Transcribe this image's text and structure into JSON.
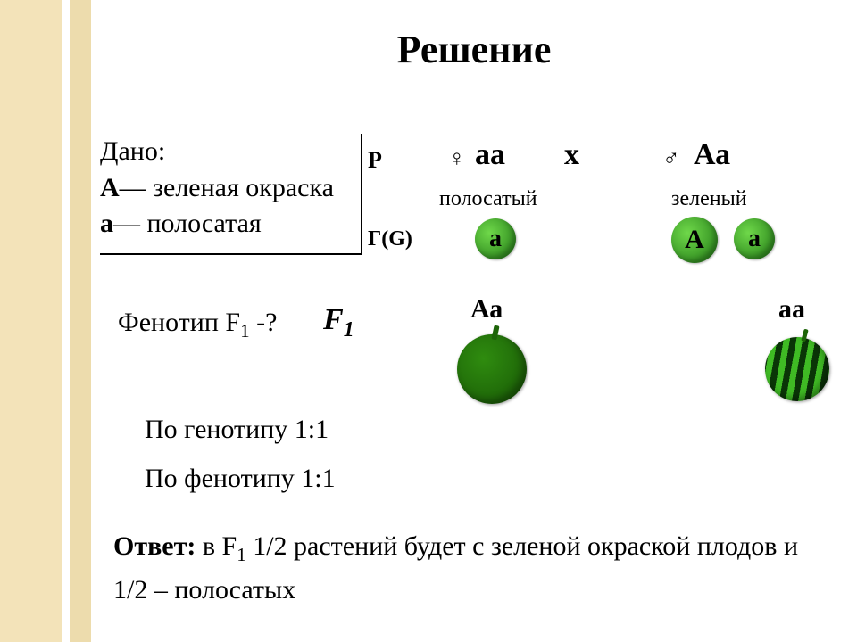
{
  "colors": {
    "sidebar_left": "#f3e3b9",
    "sidebar_right": "#eddcad",
    "background": "#ffffff",
    "text": "#000000",
    "gamete_light": "#6fd84a",
    "gamete_dark": "#2e8a1e",
    "fruit_green_light": "#2f8c0f",
    "fruit_green_dark": "#1d6408",
    "stripe_dark": "#0a3507",
    "stripe_light": "#3fbb24"
  },
  "title": "Решение",
  "given": {
    "label": "Дано:",
    "line1_allele": "А",
    "line1_rest": "— зеленая окраска",
    "line2_allele": "а",
    "line2_rest": "— полосатая"
  },
  "phenotype_question_prefix": "Фенотип  F",
  "phenotype_question_sub": "1",
  "phenotype_question_suffix": " -?",
  "cross": {
    "P_label": "P",
    "female_symbol": "♀",
    "female_genotype": "аа",
    "cross_symbol": "х",
    "male_symbol": "♂",
    "male_genotype": "Аа",
    "female_phenotype": "полосатый",
    "male_phenotype": "зеленый",
    "G_label": "Г(G)",
    "gamete_female": "а",
    "gamete_male_1": "А",
    "gamete_male_2": "а"
  },
  "f1": {
    "label_base": "F",
    "label_sub": "1",
    "geno1": "Аа",
    "geno2": "аа"
  },
  "ratios": {
    "genotype": "По генотипу 1:1",
    "phenotype": "По фенотипу 1:1"
  },
  "answer": {
    "label": "Ответ:",
    "text_prefix": "   в F",
    "text_sub": "1",
    "text_rest": "  1/2 растений будет с зеленой окраской плодов и  1/2 – полосатых"
  }
}
